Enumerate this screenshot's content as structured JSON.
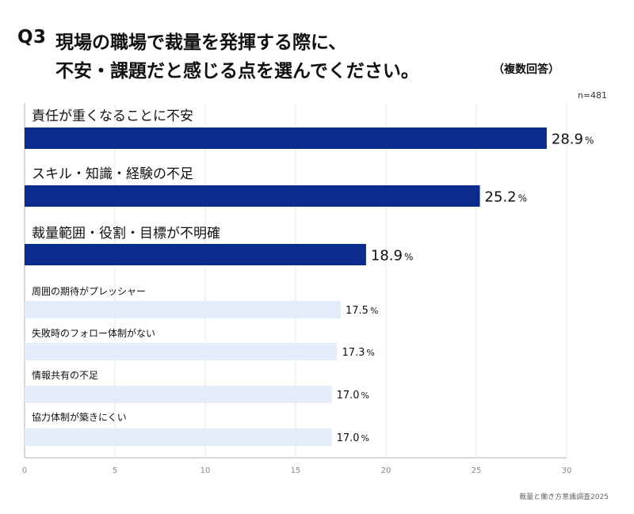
{
  "header": {
    "q_label": "Q3",
    "title_line1": "現場の職場で裁量を発揮する際に、",
    "title_line2": "不安・課題だと感じる点を選んでください。",
    "note": "（複数回答）",
    "sample": "n=481"
  },
  "source": "裁量と働き方意識調査2025",
  "colors": {
    "highlight": "#0c2b8e",
    "normal": "#e3ecfb",
    "grid": "#e6e6e6"
  },
  "chart_data": {
    "type": "bar",
    "orientation": "horizontal",
    "categories": [
      "責任が重くなることに不安",
      "スキル・知識・経験の不足",
      "裁量範囲・役割・目標が不明確",
      "周囲の期待がプレッシャー",
      "失敗時のフォロー体制がない",
      "情報共有の不足",
      "協力体制が築きにくい"
    ],
    "values": [
      28.9,
      25.2,
      18.9,
      17.5,
      17.3,
      17.0,
      17.0
    ],
    "labels": [
      "28.9",
      "25.2",
      "18.9",
      "17.5",
      "17.3",
      "17.0",
      "17.0"
    ],
    "unit": "%",
    "highlighted": [
      true,
      true,
      true,
      false,
      false,
      false,
      false
    ],
    "xlim": [
      0,
      30
    ],
    "xticks": [
      "0",
      "5",
      "10",
      "15",
      "20",
      "25",
      "30"
    ],
    "grid": true
  }
}
